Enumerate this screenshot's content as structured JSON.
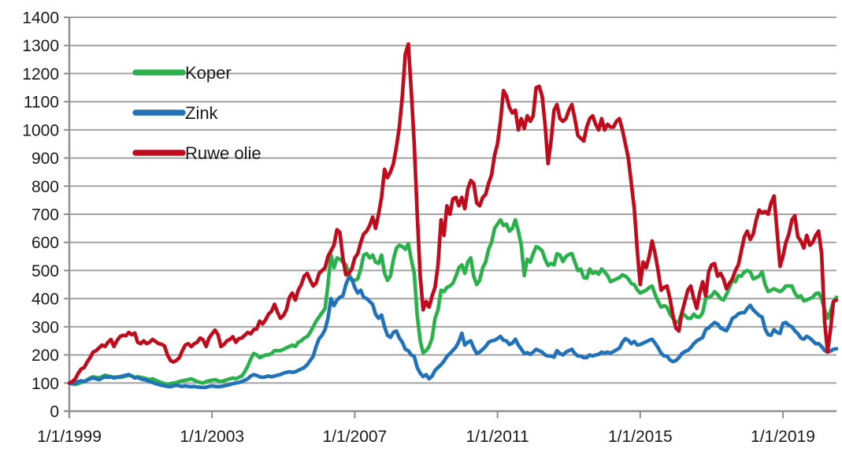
{
  "chart_data": {
    "type": "line",
    "title": "",
    "xlabel": "",
    "ylabel": "",
    "y_min": 0,
    "y_max": 1400,
    "y_step": 100,
    "grid": "horizontal",
    "legend_position": "top-left-inside",
    "y_ticks": [
      0,
      100,
      200,
      300,
      400,
      500,
      600,
      700,
      800,
      900,
      1000,
      1100,
      1200,
      1300,
      1400
    ],
    "x_tick_labels": [
      "1/1/1999",
      "1/1/2003",
      "1/1/2007",
      "1/1/2011",
      "1/1/2015",
      "1/1/2019"
    ],
    "x_unit": "monthly-index-points, Jan 1999 = 100, data through mid-2020",
    "series": [
      {
        "id": "koper",
        "name": "Koper",
        "color": "#2BB14C",
        "values": [
          100,
          97,
          95,
          98,
          102,
          105,
          112,
          118,
          122,
          120,
          118,
          122,
          128,
          125,
          123,
          120,
          122,
          120,
          122,
          125,
          128,
          125,
          120,
          122,
          120,
          118,
          115,
          112,
          115,
          110,
          105,
          102,
          98,
          95,
          98,
          100,
          102,
          105,
          108,
          110,
          112,
          115,
          110,
          105,
          102,
          100,
          105,
          108,
          110,
          112,
          108,
          105,
          108,
          112,
          115,
          118,
          115,
          120,
          125,
          140,
          160,
          185,
          205,
          200,
          190,
          195,
          200,
          200,
          205,
          215,
          215,
          215,
          220,
          225,
          230,
          235,
          230,
          245,
          250,
          260,
          265,
          280,
          300,
          320,
          335,
          350,
          365,
          450,
          555,
          510,
          545,
          540,
          530,
          520,
          490,
          465,
          465,
          470,
          505,
          555,
          560,
          545,
          555,
          530,
          525,
          555,
          490,
          465,
          480,
          540,
          580,
          590,
          585,
          575,
          595,
          540,
          490,
          340,
          250,
          207,
          215,
          230,
          260,
          330,
          360,
          430,
          425,
          440,
          445,
          455,
          480,
          510,
          520,
          490,
          530,
          545,
          480,
          450,
          465,
          510,
          530,
          575,
          600,
          650,
          665,
          680,
          660,
          665,
          640,
          650,
          680,
          640,
          590,
          482,
          540,
          530,
          560,
          585,
          580,
          570,
          540,
          518,
          525,
          520,
          560,
          555,
          532,
          550,
          557,
          560,
          530,
          500,
          505,
          475,
          473,
          505,
          490,
          495,
          487,
          505,
          495,
          482,
          460,
          465,
          470,
          475,
          485,
          480,
          470,
          454,
          450,
          431,
          420,
          425,
          430,
          440,
          445,
          415,
          390,
          370,
          375,
          370,
          345,
          330,
          315,
          320,
          350,
          340,
          330,
          330,
          345,
          335,
          335,
          350,
          400,
          405,
          410,
          425,
          415,
          400,
          395,
          415,
          440,
          465,
          460,
          482,
          480,
          495,
          500,
          495,
          470,
          475,
          480,
          495,
          450,
          425,
          430,
          435,
          430,
          425,
          432,
          445,
          445,
          445,
          420,
          405,
          410,
          392,
          395,
          400,
          405,
          418,
          420,
          400,
          360,
          330,
          355,
          390,
          405
        ]
      },
      {
        "id": "zink",
        "name": "Zink",
        "color": "#2172B8",
        "values": [
          100,
          98,
          100,
          105,
          108,
          105,
          110,
          115,
          118,
          115,
          112,
          118,
          122,
          120,
          122,
          118,
          120,
          122,
          125,
          128,
          130,
          125,
          118,
          120,
          115,
          112,
          110,
          105,
          102,
          98,
          95,
          92,
          90,
          88,
          87,
          90,
          92,
          90,
          88,
          90,
          88,
          87,
          88,
          86,
          85,
          84,
          85,
          88,
          90,
          88,
          87,
          88,
          90,
          92,
          95,
          98,
          100,
          102,
          105,
          110,
          115,
          125,
          130,
          127,
          122,
          120,
          122,
          125,
          122,
          125,
          128,
          130,
          135,
          138,
          140,
          138,
          140,
          145,
          150,
          155,
          165,
          180,
          195,
          230,
          258,
          270,
          290,
          330,
          400,
          375,
          395,
          405,
          410,
          450,
          476,
          470,
          440,
          420,
          430,
          405,
          400,
          390,
          380,
          345,
          330,
          342,
          300,
          270,
          262,
          280,
          285,
          260,
          245,
          220,
          215,
          200,
          195,
          155,
          135,
          123,
          130,
          115,
          125,
          145,
          155,
          165,
          178,
          195,
          205,
          216,
          228,
          248,
          277,
          235,
          245,
          250,
          225,
          205,
          210,
          220,
          230,
          245,
          250,
          252,
          258,
          266,
          252,
          250,
          237,
          242,
          256,
          235,
          221,
          205,
          208,
          202,
          210,
          220,
          215,
          210,
          200,
          196,
          196,
          192,
          215,
          205,
          200,
          210,
          215,
          220,
          205,
          196,
          196,
          190,
          190,
          200,
          196,
          200,
          202,
          210,
          206,
          210,
          206,
          212,
          218,
          224,
          245,
          258,
          252,
          240,
          248,
          235,
          237,
          242,
          247,
          252,
          256,
          242,
          226,
          206,
          196,
          196,
          182,
          176,
          180,
          190,
          205,
          212,
          216,
          226,
          240,
          250,
          256,
          262,
          290,
          296,
          306,
          315,
          310,
          296,
          290,
          286,
          306,
          330,
          336,
          346,
          350,
          350,
          365,
          376,
          360,
          350,
          340,
          335,
          292,
          272,
          270,
          290,
          280,
          276,
          312,
          315,
          305,
          300,
          286,
          276,
          260,
          256,
          266,
          260,
          250,
          240,
          240,
          230,
          216,
          210,
          214,
          220,
          222
        ]
      },
      {
        "id": "ruwe-olie",
        "name": "Ruwe olie",
        "color": "#C00B1C",
        "values": [
          100,
          105,
          115,
          135,
          150,
          155,
          175,
          190,
          210,
          215,
          225,
          235,
          230,
          245,
          255,
          230,
          250,
          265,
          270,
          268,
          280,
          272,
          278,
          245,
          240,
          250,
          240,
          245,
          255,
          248,
          240,
          238,
          232,
          200,
          180,
          175,
          180,
          190,
          215,
          235,
          240,
          230,
          240,
          245,
          260,
          253,
          230,
          260,
          275,
          288,
          272,
          230,
          237,
          250,
          255,
          265,
          245,
          258,
          260,
          270,
          280,
          275,
          290,
          292,
          320,
          310,
          325,
          345,
          355,
          380,
          352,
          330,
          340,
          360,
          405,
          420,
          395,
          430,
          450,
          480,
          490,
          465,
          445,
          455,
          490,
          500,
          510,
          550,
          570,
          590,
          645,
          635,
          545,
          485,
          490,
          505,
          545,
          560,
          600,
          630,
          640,
          660,
          690,
          650,
          700,
          760,
          860,
          830,
          850,
          880,
          940,
          1010,
          1120,
          1270,
          1305,
          1140,
          950,
          700,
          480,
          360,
          390,
          370,
          410,
          440,
          520,
          680,
          625,
          730,
          700,
          755,
          760,
          730,
          760,
          720,
          790,
          820,
          810,
          740,
          730,
          760,
          770,
          810,
          840,
          910,
          950,
          1030,
          1140,
          1120,
          1080,
          1060,
          1070,
          1000,
          1040,
          1005,
          1050,
          1030,
          1050,
          1150,
          1155,
          1120,
          1020,
          880,
          960,
          1070,
          1090,
          1040,
          1030,
          1040,
          1070,
          1090,
          1040,
          980,
          970,
          960,
          1010,
          1040,
          1050,
          1020,
          1000,
          1040,
          1000,
          1020,
          1010,
          1010,
          1030,
          1040,
          1000,
          950,
          900,
          810,
          720,
          570,
          450,
          530,
          510,
          550,
          605,
          560,
          500,
          430,
          440,
          445,
          400,
          340,
          295,
          285,
          350,
          390,
          430,
          445,
          400,
          365,
          420,
          460,
          410,
          495,
          520,
          525,
          480,
          490,
          470,
          435,
          455,
          470,
          500,
          520,
          570,
          620,
          640,
          610,
          630,
          680,
          715,
          705,
          710,
          700,
          740,
          765,
          640,
          515,
          550,
          600,
          630,
          680,
          695,
          620,
          605,
          580,
          625,
          590,
          600,
          625,
          640,
          560,
          320,
          210,
          290,
          390,
          395
        ]
      }
    ]
  }
}
